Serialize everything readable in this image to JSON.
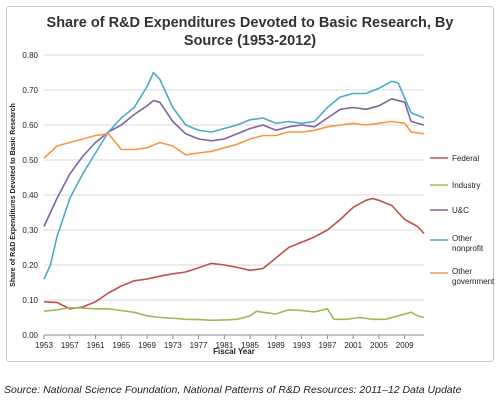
{
  "caption": "Source: National Science Foundation, National Patterns of R&D Resources: 2011–12 Data Update",
  "chart_data": {
    "type": "line",
    "title_line1": "Share of R&D Expenditures Devoted to Basic Research, By",
    "title_line2": "Source (1953-2012)",
    "xlabel": "Fiscal Year",
    "ylabel": "Share of R&D Expenditures Devoted to Basic Research",
    "xlim": [
      1953,
      2012
    ],
    "ylim": [
      0,
      0.8
    ],
    "y_ticks": [
      "0.00",
      "0.10",
      "0.20",
      "0.30",
      "0.40",
      "0.50",
      "0.60",
      "0.70",
      "0.80"
    ],
    "x_ticks": [
      "1953",
      "1957",
      "1961",
      "1965",
      "1969",
      "1973",
      "1977",
      "1981",
      "1985",
      "1989",
      "1993",
      "1997",
      "2001",
      "2005",
      "2009"
    ],
    "grid": "horizontal",
    "legend_position": "right",
    "series": [
      {
        "name": "Federal",
        "color": "#c0504d",
        "points": [
          [
            1953,
            0.095
          ],
          [
            1955,
            0.093
          ],
          [
            1957,
            0.075
          ],
          [
            1959,
            0.08
          ],
          [
            1961,
            0.095
          ],
          [
            1963,
            0.12
          ],
          [
            1965,
            0.14
          ],
          [
            1967,
            0.155
          ],
          [
            1969,
            0.16
          ],
          [
            1971,
            0.168
          ],
          [
            1973,
            0.175
          ],
          [
            1975,
            0.18
          ],
          [
            1977,
            0.192
          ],
          [
            1979,
            0.205
          ],
          [
            1981,
            0.2
          ],
          [
            1983,
            0.193
          ],
          [
            1985,
            0.185
          ],
          [
            1987,
            0.19
          ],
          [
            1989,
            0.22
          ],
          [
            1991,
            0.25
          ],
          [
            1993,
            0.265
          ],
          [
            1995,
            0.28
          ],
          [
            1997,
            0.3
          ],
          [
            1999,
            0.33
          ],
          [
            2001,
            0.365
          ],
          [
            2003,
            0.385
          ],
          [
            2004,
            0.39
          ],
          [
            2005,
            0.385
          ],
          [
            2007,
            0.37
          ],
          [
            2009,
            0.33
          ],
          [
            2010,
            0.32
          ],
          [
            2011,
            0.31
          ],
          [
            2012,
            0.29
          ]
        ]
      },
      {
        "name": "Industry",
        "color": "#9bbb59",
        "points": [
          [
            1953,
            0.068
          ],
          [
            1955,
            0.072
          ],
          [
            1957,
            0.078
          ],
          [
            1959,
            0.077
          ],
          [
            1961,
            0.075
          ],
          [
            1963,
            0.075
          ],
          [
            1965,
            0.07
          ],
          [
            1967,
            0.065
          ],
          [
            1969,
            0.055
          ],
          [
            1971,
            0.05
          ],
          [
            1973,
            0.048
          ],
          [
            1975,
            0.045
          ],
          [
            1977,
            0.044
          ],
          [
            1979,
            0.042
          ],
          [
            1981,
            0.043
          ],
          [
            1983,
            0.045
          ],
          [
            1985,
            0.055
          ],
          [
            1986,
            0.068
          ],
          [
            1987,
            0.065
          ],
          [
            1989,
            0.06
          ],
          [
            1991,
            0.072
          ],
          [
            1993,
            0.07
          ],
          [
            1995,
            0.066
          ],
          [
            1997,
            0.075
          ],
          [
            1998,
            0.045
          ],
          [
            2000,
            0.045
          ],
          [
            2002,
            0.05
          ],
          [
            2004,
            0.045
          ],
          [
            2006,
            0.045
          ],
          [
            2008,
            0.055
          ],
          [
            2010,
            0.065
          ],
          [
            2011,
            0.055
          ],
          [
            2012,
            0.05
          ]
        ]
      },
      {
        "name": "U&C",
        "color": "#8064a2",
        "points": [
          [
            1953,
            0.31
          ],
          [
            1955,
            0.39
          ],
          [
            1957,
            0.46
          ],
          [
            1959,
            0.51
          ],
          [
            1961,
            0.55
          ],
          [
            1963,
            0.58
          ],
          [
            1965,
            0.6
          ],
          [
            1967,
            0.63
          ],
          [
            1969,
            0.655
          ],
          [
            1970,
            0.67
          ],
          [
            1971,
            0.665
          ],
          [
            1973,
            0.61
          ],
          [
            1975,
            0.575
          ],
          [
            1977,
            0.56
          ],
          [
            1979,
            0.555
          ],
          [
            1981,
            0.56
          ],
          [
            1983,
            0.575
          ],
          [
            1985,
            0.59
          ],
          [
            1987,
            0.6
          ],
          [
            1989,
            0.585
          ],
          [
            1991,
            0.595
          ],
          [
            1993,
            0.6
          ],
          [
            1995,
            0.595
          ],
          [
            1997,
            0.62
          ],
          [
            1999,
            0.645
          ],
          [
            2001,
            0.65
          ],
          [
            2003,
            0.645
          ],
          [
            2005,
            0.655
          ],
          [
            2007,
            0.675
          ],
          [
            2009,
            0.665
          ],
          [
            2010,
            0.61
          ],
          [
            2012,
            0.6
          ]
        ]
      },
      {
        "name": "Other nonprofit",
        "color": "#4bacc6",
        "points": [
          [
            1953,
            0.16
          ],
          [
            1954,
            0.2
          ],
          [
            1955,
            0.28
          ],
          [
            1957,
            0.39
          ],
          [
            1959,
            0.46
          ],
          [
            1961,
            0.52
          ],
          [
            1963,
            0.58
          ],
          [
            1965,
            0.62
          ],
          [
            1967,
            0.65
          ],
          [
            1969,
            0.71
          ],
          [
            1970,
            0.75
          ],
          [
            1971,
            0.73
          ],
          [
            1973,
            0.65
          ],
          [
            1975,
            0.6
          ],
          [
            1977,
            0.585
          ],
          [
            1979,
            0.58
          ],
          [
            1981,
            0.59
          ],
          [
            1983,
            0.6
          ],
          [
            1985,
            0.615
          ],
          [
            1987,
            0.62
          ],
          [
            1989,
            0.605
          ],
          [
            1991,
            0.61
          ],
          [
            1993,
            0.605
          ],
          [
            1995,
            0.61
          ],
          [
            1997,
            0.65
          ],
          [
            1999,
            0.68
          ],
          [
            2001,
            0.69
          ],
          [
            2003,
            0.69
          ],
          [
            2005,
            0.705
          ],
          [
            2007,
            0.725
          ],
          [
            2008,
            0.72
          ],
          [
            2010,
            0.635
          ],
          [
            2012,
            0.62
          ]
        ]
      },
      {
        "name": "Other government",
        "color": "#f79646",
        "points": [
          [
            1953,
            0.505
          ],
          [
            1955,
            0.54
          ],
          [
            1957,
            0.55
          ],
          [
            1959,
            0.56
          ],
          [
            1961,
            0.57
          ],
          [
            1963,
            0.575
          ],
          [
            1965,
            0.53
          ],
          [
            1967,
            0.53
          ],
          [
            1969,
            0.535
          ],
          [
            1971,
            0.55
          ],
          [
            1973,
            0.54
          ],
          [
            1975,
            0.515
          ],
          [
            1977,
            0.52
          ],
          [
            1979,
            0.525
          ],
          [
            1981,
            0.535
          ],
          [
            1983,
            0.545
          ],
          [
            1985,
            0.56
          ],
          [
            1987,
            0.57
          ],
          [
            1989,
            0.57
          ],
          [
            1991,
            0.58
          ],
          [
            1993,
            0.58
          ],
          [
            1995,
            0.585
          ],
          [
            1997,
            0.595
          ],
          [
            1999,
            0.6
          ],
          [
            2001,
            0.605
          ],
          [
            2003,
            0.6
          ],
          [
            2005,
            0.605
          ],
          [
            2007,
            0.61
          ],
          [
            2009,
            0.605
          ],
          [
            2010,
            0.58
          ],
          [
            2012,
            0.575
          ]
        ]
      }
    ]
  }
}
